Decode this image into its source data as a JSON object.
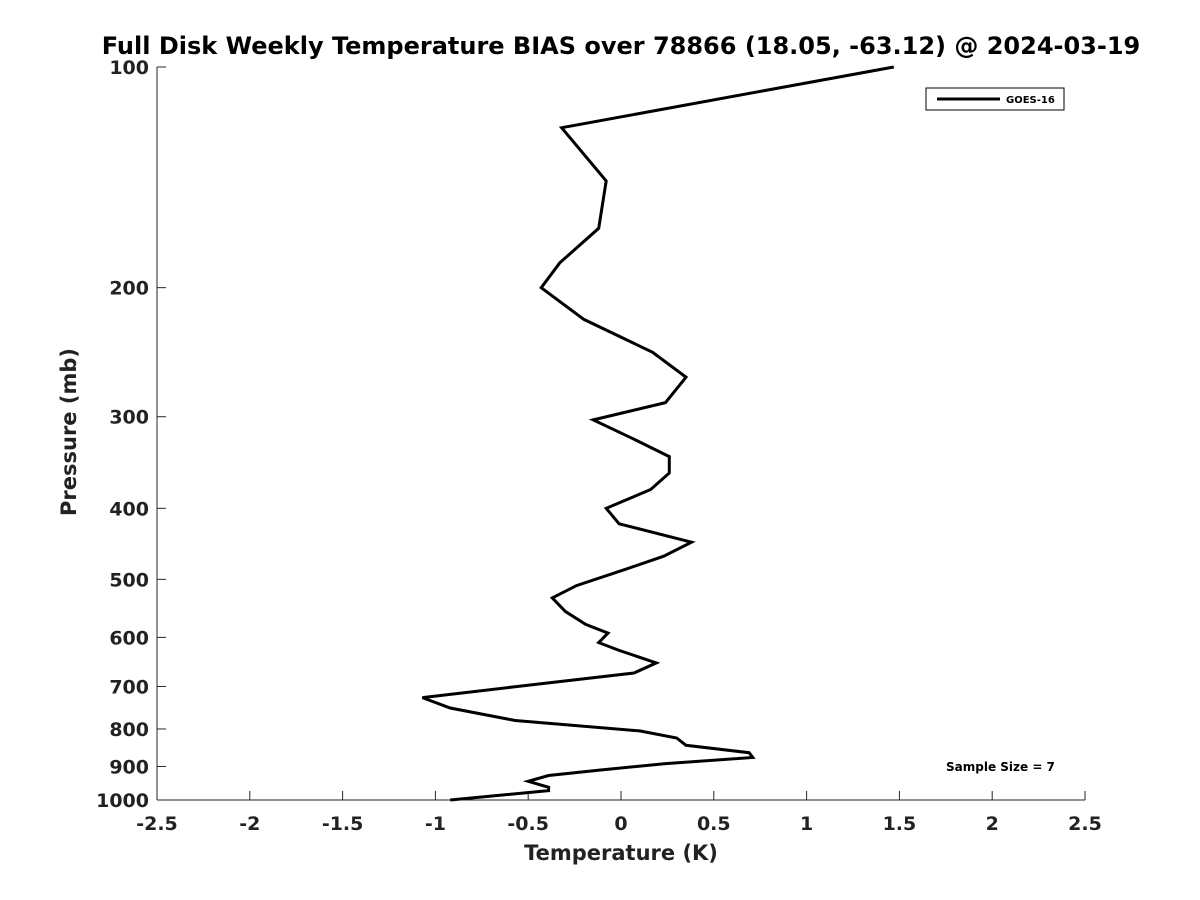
{
  "chart_data": {
    "type": "line",
    "title": "Full Disk Weekly Temperature BIAS over 78866 (18.05, -63.12) @ 2024-03-19",
    "xlabel": "Temperature (K)",
    "ylabel": "Pressure (mb)",
    "xlim": [
      -2.5,
      2.5
    ],
    "ylim": [
      100,
      1000
    ],
    "y_scale": "log",
    "y_reversed": true,
    "grid": false,
    "legend_position": "top-right",
    "x_ticks": [
      -2.5,
      -2,
      -1.5,
      -1,
      -0.5,
      0,
      0.5,
      1,
      1.5,
      2,
      2.5
    ],
    "x_tick_labels": [
      "-2.5",
      "-2",
      "-1.5",
      "-1",
      "-0.5",
      "0",
      "0.5",
      "1",
      "1.5",
      "2",
      "2.5"
    ],
    "y_ticks": [
      100,
      200,
      300,
      400,
      500,
      600,
      700,
      800,
      900,
      1000
    ],
    "y_tick_labels": [
      "100",
      "200",
      "300",
      "400",
      "500",
      "600",
      "700",
      "800",
      "900",
      "1000"
    ],
    "series": [
      {
        "name": "GOES-16",
        "color": "#000000",
        "x": [
          1.47,
          -0.32,
          -0.08,
          -0.12,
          -0.33,
          -0.43,
          -0.2,
          0.17,
          0.35,
          0.24,
          -0.15,
          0.06,
          0.26,
          0.26,
          0.16,
          -0.08,
          -0.01,
          0.38,
          0.23,
          0.02,
          -0.24,
          -0.37,
          -0.3,
          -0.19,
          -0.07,
          -0.12,
          -0.01,
          0.19,
          0.07,
          -0.56,
          -1.07,
          -0.92,
          -0.57,
          0.1,
          0.3,
          0.35,
          0.69,
          0.71,
          0.24,
          -0.11,
          -0.39,
          -0.5,
          -0.39,
          -0.39,
          -0.92
        ],
        "y": [
          100,
          121,
          143,
          166,
          185,
          200,
          221,
          245,
          265,
          287,
          303,
          321,
          340,
          358,
          377,
          400,
          420,
          445,
          465,
          485,
          510,
          530,
          553,
          576,
          592,
          610,
          625,
          650,
          671,
          700,
          725,
          749,
          779,
          805,
          823,
          842,
          862,
          875,
          892,
          910,
          926,
          943,
          961,
          971,
          1000
        ]
      }
    ],
    "annotations": [
      {
        "text": "Sample Size = 7",
        "position": "bottom-right"
      }
    ]
  }
}
